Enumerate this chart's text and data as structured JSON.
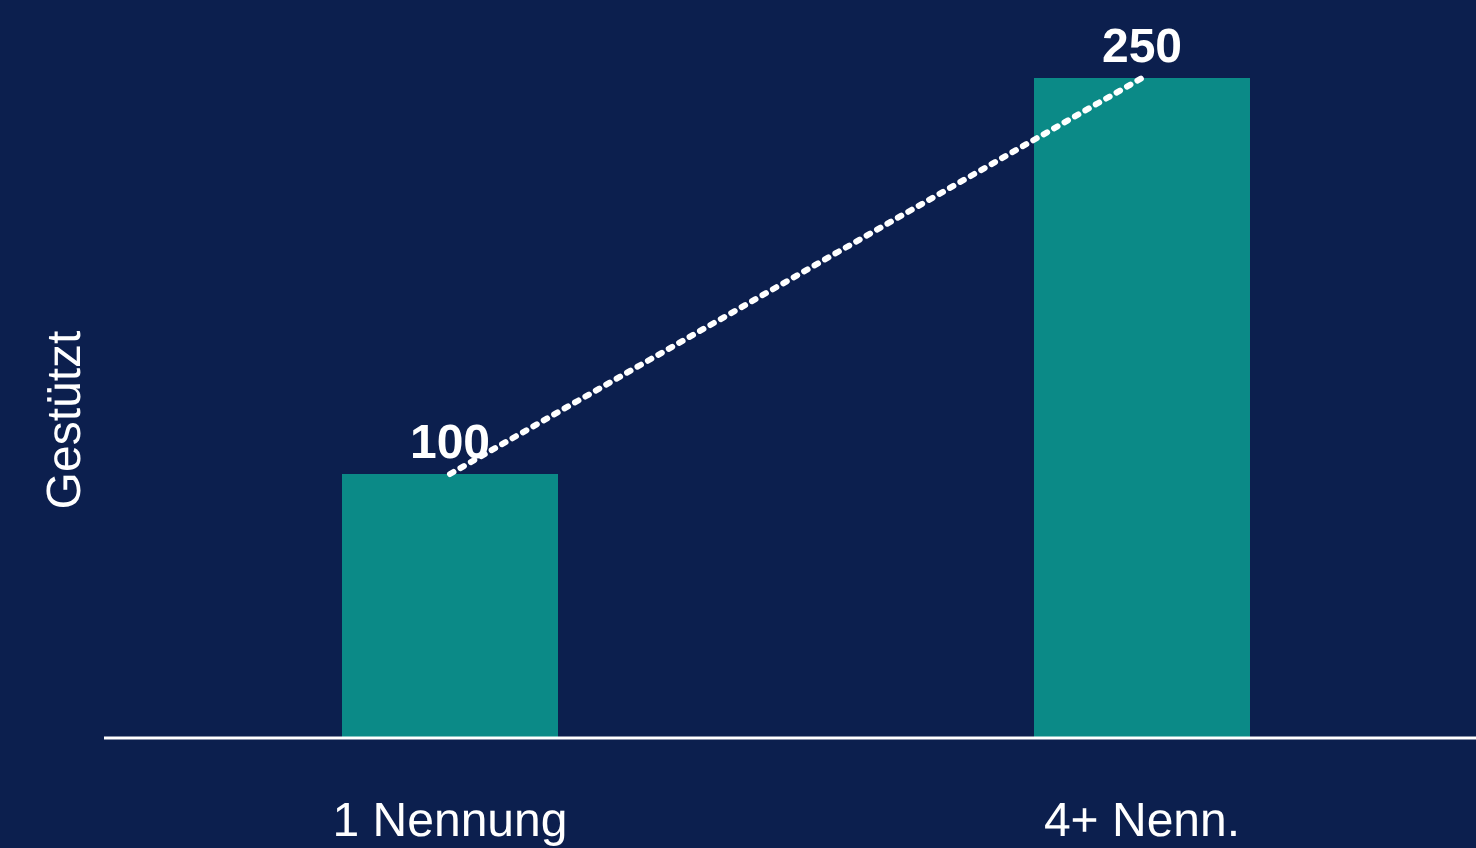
{
  "chart_data": {
    "type": "bar",
    "ylabel": "Gestützt",
    "categories": [
      "1 Nennung",
      "4+ Nenn."
    ],
    "series": [
      {
        "color": "#0b8a87",
        "values": [
          100,
          250
        ],
        "value_labels": [
          "100",
          "250"
        ]
      },
      {
        "type": "line",
        "color": "#ffffff",
        "values": [
          100,
          250
        ],
        "line_style": "dotted"
      }
    ]
  }
}
